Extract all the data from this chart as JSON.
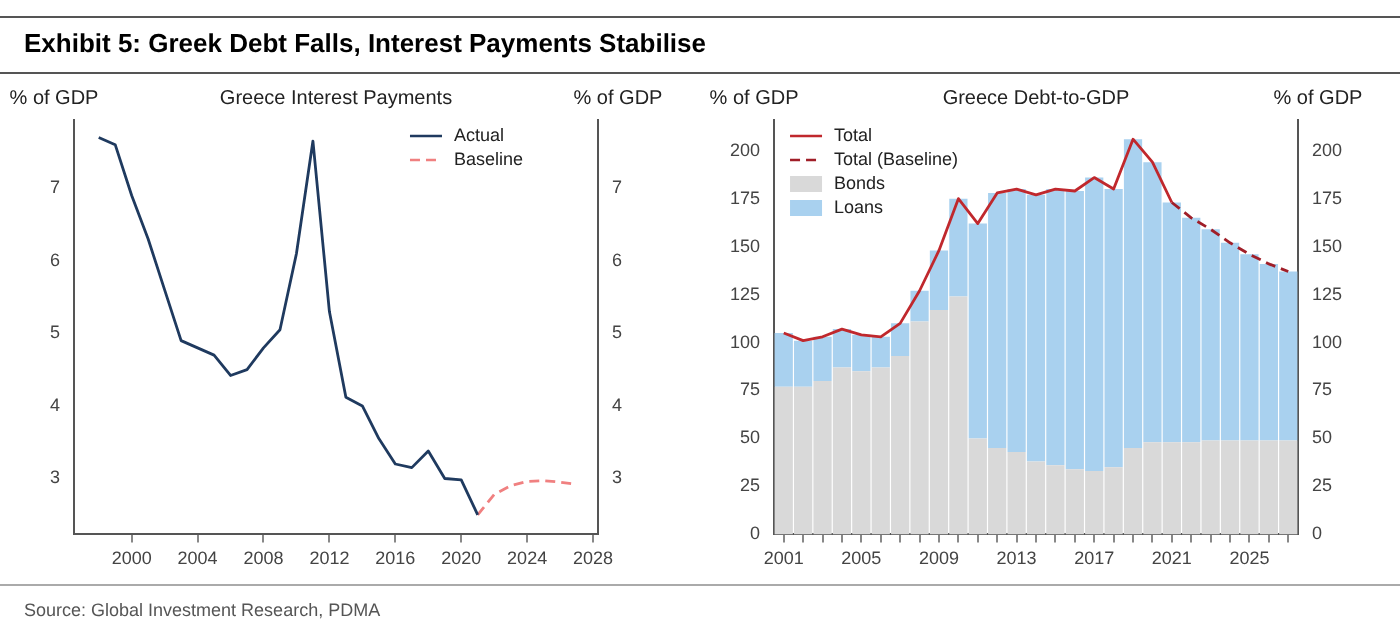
{
  "chart_data": [
    {
      "type": "line",
      "title": "Greece Interest Payments",
      "ylabel": "% of GDP",
      "y2label": "% of GDP",
      "annotations": [
        "Exhibit 5: Greek Debt Falls, Interest Payments Stabilise"
      ],
      "xlim": [
        1996.5,
        2028.3
      ],
      "xticks": [
        2000,
        2004,
        2008,
        2012,
        2016,
        2020,
        2024,
        2028
      ],
      "ylim": [
        2.23,
        7.94
      ],
      "yticks": [
        3,
        4,
        5,
        6,
        7
      ],
      "y2lim": [
        2.23,
        7.94
      ],
      "y2ticks": [
        3,
        4,
        5,
        6,
        7
      ],
      "grid": false,
      "legend": "top right",
      "marker": "none",
      "series": [
        {
          "name": "Actual",
          "color": "#1f3a5f",
          "line_style": "solid",
          "x": [
            1998,
            1999,
            2000,
            2001,
            2002,
            2003,
            2004,
            2005,
            2006,
            2007,
            2008,
            2009,
            2010,
            2011,
            2012,
            2013,
            2014,
            2015,
            2016,
            2017,
            2018,
            2019,
            2020,
            2021
          ],
          "values": [
            7.7,
            7.6,
            6.9,
            6.3,
            5.6,
            4.9,
            4.8,
            4.7,
            4.42,
            4.5,
            4.8,
            5.05,
            6.1,
            7.65,
            5.3,
            4.12,
            4.0,
            3.55,
            3.2,
            3.15,
            3.38,
            3.0,
            2.98,
            2.5
          ]
        },
        {
          "name": "Baseline",
          "color": "#f08080",
          "line_style": "dashed",
          "x": [
            2021,
            2022,
            2023,
            2024,
            2025,
            2026,
            2027
          ],
          "values": [
            2.5,
            2.78,
            2.9,
            2.96,
            2.97,
            2.95,
            2.92
          ]
        }
      ]
    },
    {
      "type": "bar",
      "title": "Greece Debt-to-GDP",
      "ylabel": "% of GDP",
      "y2label": "% of GDP",
      "annotations": [
        "Source: Global Investment Research, PDMA"
      ],
      "categories": [
        "2001",
        null,
        null,
        null,
        "2005",
        null,
        null,
        null,
        "2009",
        null,
        null,
        null,
        "2013",
        null,
        null,
        null,
        "2017",
        null,
        null,
        null,
        "2021",
        null,
        null,
        null,
        "2025",
        null,
        null
      ],
      "ylim": [
        0,
        216
      ],
      "yticks": [
        0,
        25,
        50,
        75,
        100,
        125,
        150,
        175,
        200
      ],
      "y2lim": [
        0,
        216
      ],
      "y2ticks": [
        0,
        25,
        50,
        75,
        100,
        125,
        150,
        175,
        200
      ],
      "grid": false,
      "legend": "top left",
      "stacked": true,
      "marker": "none",
      "series": [
        {
          "name": "Total",
          "type": "line",
          "color": "#c0282d",
          "line_style": "solid",
          "values": [
            105,
            101,
            103,
            107,
            104,
            103,
            110,
            127,
            148,
            175,
            162,
            178,
            180,
            177,
            180,
            179,
            186,
            180,
            206,
            194,
            173,
            null,
            null,
            null,
            null,
            null,
            null
          ]
        },
        {
          "name": "Total (Baseline)",
          "type": "line",
          "color": "#a01e28",
          "line_style": "dashed",
          "values": [
            null,
            null,
            null,
            null,
            null,
            null,
            null,
            null,
            null,
            null,
            null,
            null,
            null,
            null,
            null,
            null,
            null,
            null,
            null,
            null,
            173,
            165,
            159,
            152,
            146,
            141,
            137
          ]
        },
        {
          "name": "Bonds",
          "type": "bar",
          "color": "#d9d9d9",
          "values": [
            77,
            77,
            80,
            87,
            85,
            87,
            93,
            111,
            117,
            124,
            50,
            45,
            43,
            38,
            36,
            34,
            33,
            35,
            45,
            48,
            48,
            48,
            49,
            49,
            49,
            49,
            49
          ]
        },
        {
          "name": "Loans",
          "type": "bar",
          "color": "#a9d1ef",
          "values": [
            28,
            24,
            23,
            20,
            19,
            16,
            17,
            16,
            31,
            51,
            112,
            133,
            137,
            139,
            144,
            145,
            153,
            145,
            161,
            146,
            125,
            117,
            110,
            103,
            97,
            92,
            88
          ]
        }
      ]
    }
  ]
}
